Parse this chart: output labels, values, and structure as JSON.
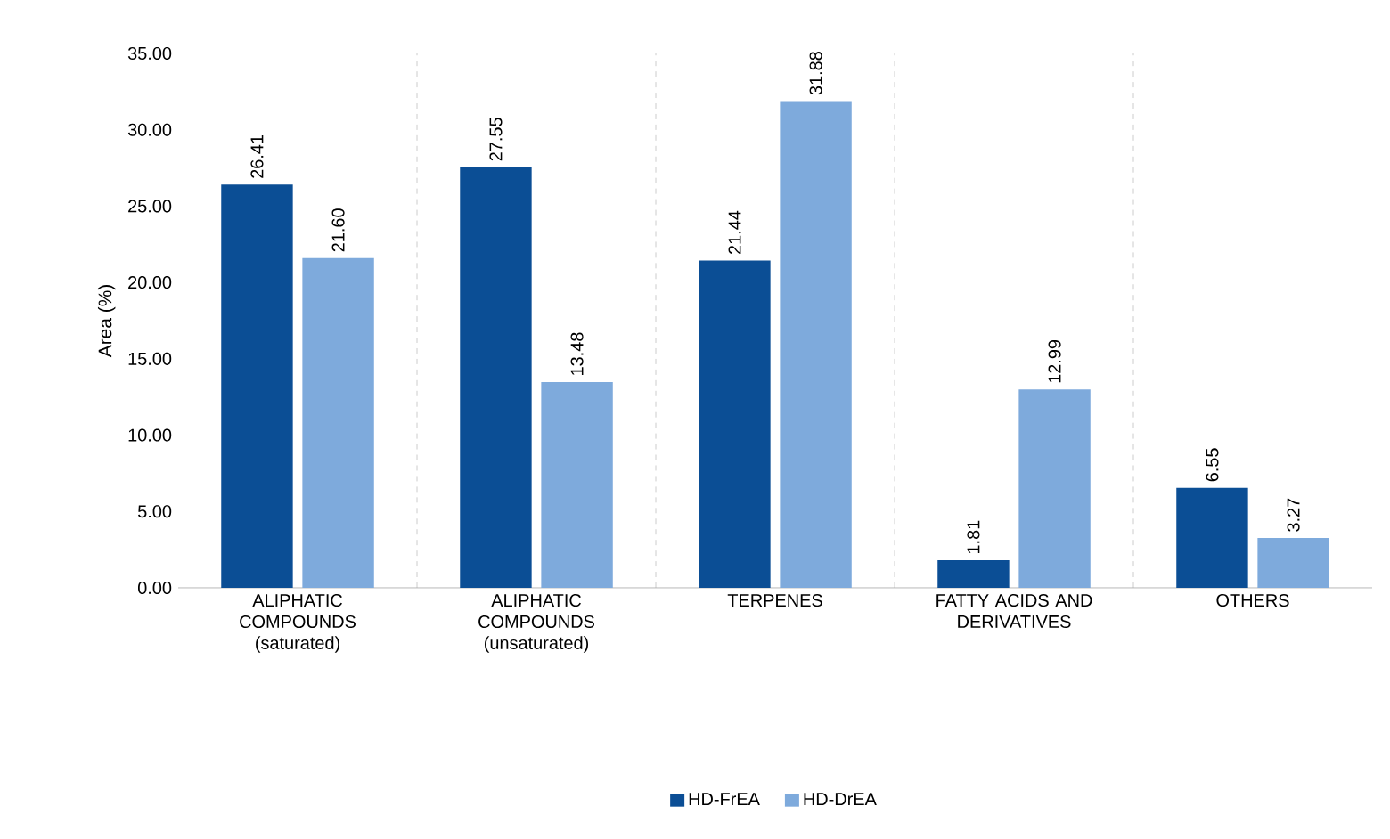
{
  "chart_data": {
    "type": "bar",
    "ylabel": "Area (%)",
    "categories": [
      "ALIPHATIC COMPOUNDS (saturated)",
      "ALIPHATIC COMPOUNDS (unsaturated)",
      "TERPENES",
      "FATTY ACIDS AND DERIVATIVES",
      "OTHERS"
    ],
    "series": [
      {
        "name": "HD-FrEA",
        "color": "#0b4e95",
        "values": [
          26.41,
          27.55,
          21.44,
          1.81,
          6.55
        ],
        "value_labels": [
          "26.41",
          "27.55",
          "21.44",
          "1.81",
          "6.55"
        ]
      },
      {
        "name": "HD-DrEA",
        "color": "#7eaadc",
        "values": [
          21.6,
          13.48,
          31.88,
          12.99,
          3.27
        ],
        "value_labels": [
          "21.60",
          "13.48",
          "31.88",
          "12.99",
          "3.27"
        ]
      }
    ],
    "ylim": [
      0,
      35
    ],
    "yticks": [
      {
        "value": 0,
        "label": "0.00"
      },
      {
        "value": 5,
        "label": "5.00"
      },
      {
        "value": 10,
        "label": "10.00"
      },
      {
        "value": 15,
        "label": "15.00"
      },
      {
        "value": 20,
        "label": "20.00"
      },
      {
        "value": 25,
        "label": "25.00"
      },
      {
        "value": 30,
        "label": "30.00"
      },
      {
        "value": 35,
        "label": "35.00"
      }
    ],
    "grid": "x",
    "legend": "bottom"
  }
}
